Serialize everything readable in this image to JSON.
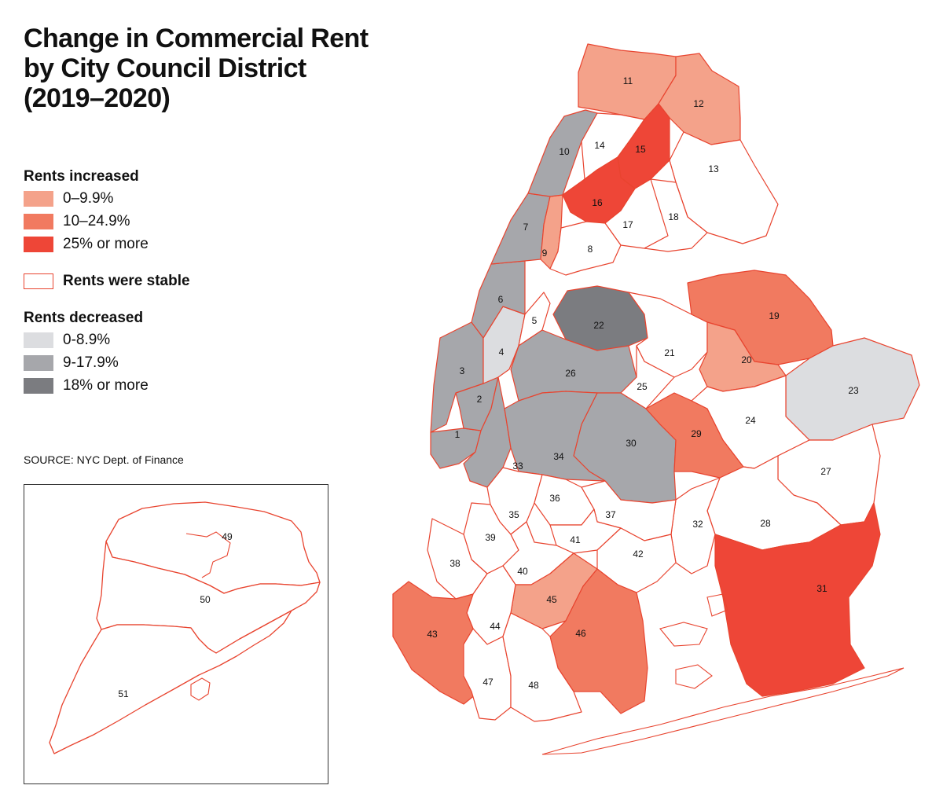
{
  "title_lines": [
    "Change in Commercial Rent",
    "by City Council District",
    "(2019–2020)"
  ],
  "legend": {
    "increased": {
      "heading": "Rents increased",
      "items": [
        {
          "label": "0–9.9%",
          "color": "#f4a28a"
        },
        {
          "label": "10–24.9%",
          "color": "#f17a60"
        },
        {
          "label": "25% or more",
          "color": "#ee4637"
        }
      ]
    },
    "stable": {
      "label": "Rents were stable",
      "color": "#ffffff",
      "border": "#e8442f"
    },
    "decreased": {
      "heading": "Rents decreased",
      "items": [
        {
          "label": "0-8.9%",
          "color": "#dcdde0"
        },
        {
          "label": "9-17.9%",
          "color": "#a6a7ab"
        },
        {
          "label": "18% or more",
          "color": "#7b7c80"
        }
      ]
    }
  },
  "source": "SOURCE: NYC Dept. of Finance",
  "districts": [
    {
      "id": "1",
      "category": "decrease_9_17.9"
    },
    {
      "id": "2",
      "category": "decrease_9_17.9"
    },
    {
      "id": "3",
      "category": "decrease_9_17.9"
    },
    {
      "id": "4",
      "category": "decrease_0_8.9"
    },
    {
      "id": "5",
      "category": "stable"
    },
    {
      "id": "6",
      "category": "decrease_9_17.9"
    },
    {
      "id": "7",
      "category": "decrease_9_17.9"
    },
    {
      "id": "8",
      "category": "stable"
    },
    {
      "id": "9",
      "category": "increase_0_9.9"
    },
    {
      "id": "10",
      "category": "decrease_9_17.9"
    },
    {
      "id": "11",
      "category": "increase_0_9.9"
    },
    {
      "id": "12",
      "category": "increase_0_9.9"
    },
    {
      "id": "13",
      "category": "stable"
    },
    {
      "id": "14",
      "category": "stable"
    },
    {
      "id": "15",
      "category": "increase_25_plus"
    },
    {
      "id": "16",
      "category": "increase_25_plus"
    },
    {
      "id": "17",
      "category": "stable"
    },
    {
      "id": "18",
      "category": "stable"
    },
    {
      "id": "19",
      "category": "increase_10_24.9"
    },
    {
      "id": "20",
      "category": "increase_0_9.9"
    },
    {
      "id": "21",
      "category": "stable"
    },
    {
      "id": "22",
      "category": "decrease_18_plus"
    },
    {
      "id": "23",
      "category": "decrease_0_8.9"
    },
    {
      "id": "24",
      "category": "stable"
    },
    {
      "id": "25",
      "category": "stable"
    },
    {
      "id": "26",
      "category": "decrease_9_17.9"
    },
    {
      "id": "27",
      "category": "stable"
    },
    {
      "id": "28",
      "category": "stable"
    },
    {
      "id": "29",
      "category": "increase_10_24.9"
    },
    {
      "id": "30",
      "category": "decrease_9_17.9"
    },
    {
      "id": "31",
      "category": "increase_25_plus"
    },
    {
      "id": "32",
      "category": "stable"
    },
    {
      "id": "33",
      "category": "decrease_9_17.9"
    },
    {
      "id": "34",
      "category": "decrease_9_17.9"
    },
    {
      "id": "35",
      "category": "stable"
    },
    {
      "id": "36",
      "category": "stable"
    },
    {
      "id": "37",
      "category": "stable"
    },
    {
      "id": "38",
      "category": "stable"
    },
    {
      "id": "39",
      "category": "stable"
    },
    {
      "id": "40",
      "category": "stable"
    },
    {
      "id": "41",
      "category": "stable"
    },
    {
      "id": "42",
      "category": "stable"
    },
    {
      "id": "43",
      "category": "increase_10_24.9"
    },
    {
      "id": "44",
      "category": "stable"
    },
    {
      "id": "45",
      "category": "increase_0_9.9"
    },
    {
      "id": "46",
      "category": "increase_10_24.9"
    },
    {
      "id": "47",
      "category": "stable"
    },
    {
      "id": "48",
      "category": "stable"
    },
    {
      "id": "49",
      "category": "stable"
    },
    {
      "id": "50",
      "category": "stable"
    },
    {
      "id": "51",
      "category": "stable"
    }
  ]
}
